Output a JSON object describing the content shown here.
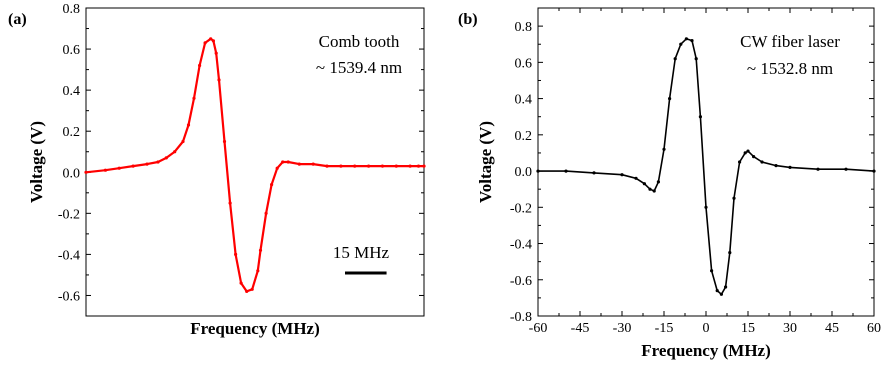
{
  "chart_data": [
    {
      "type": "line",
      "panel_label": "(a)",
      "xlabel": "Frequency (MHz)",
      "ylabel": "Voltage (V)",
      "x_ticks_labeled": false,
      "ylim": [
        -0.7,
        0.8
      ],
      "yticks": [
        -0.6,
        -0.4,
        -0.2,
        0.0,
        0.2,
        0.4,
        0.6,
        0.8
      ],
      "ytick_labels": [
        "-0.6",
        "-0.4",
        "-0.2",
        "0.0",
        "0.2",
        "0.4",
        "0.6",
        "0.8"
      ],
      "annotations": [
        "Comb tooth",
        "~ 1539.4 nm"
      ],
      "scale_bar_label": "15 MHz",
      "scale_bar_mhz": 15,
      "color": "#ff0000",
      "series": [
        {
          "x": [
            -57,
            -50,
            -45,
            -40,
            -35,
            -31,
            -28,
            -25,
            -22,
            -20,
            -18,
            -16,
            -14,
            -12,
            -11,
            -10,
            -9,
            -7,
            -5,
            -3,
            -1,
            1,
            3,
            5,
            6,
            8,
            10,
            12,
            14,
            16,
            20,
            25,
            30,
            35,
            40,
            45,
            50,
            55,
            60,
            63,
            65
          ],
          "y": [
            0.0,
            0.01,
            0.02,
            0.03,
            0.04,
            0.05,
            0.07,
            0.1,
            0.15,
            0.23,
            0.36,
            0.52,
            0.63,
            0.65,
            0.64,
            0.58,
            0.45,
            0.15,
            -0.15,
            -0.4,
            -0.54,
            -0.58,
            -0.57,
            -0.48,
            -0.38,
            -0.2,
            -0.06,
            0.02,
            0.05,
            0.05,
            0.04,
            0.04,
            0.03,
            0.03,
            0.03,
            0.03,
            0.03,
            0.03,
            0.03,
            0.03,
            0.03
          ]
        }
      ]
    },
    {
      "type": "scatter",
      "panel_label": "(b)",
      "xlabel": "Frequency (MHz)",
      "ylabel": "Voltage (V)",
      "xlim": [
        -60,
        60
      ],
      "ylim": [
        -0.8,
        0.9
      ],
      "xticks": [
        -60,
        -45,
        -30,
        -15,
        0,
        15,
        30,
        45,
        60
      ],
      "xtick_labels": [
        "-60",
        "-45",
        "-30",
        "-15",
        "0",
        "15",
        "30",
        "45",
        "60"
      ],
      "yticks": [
        -0.8,
        -0.6,
        -0.4,
        -0.2,
        0.0,
        0.2,
        0.4,
        0.6,
        0.8
      ],
      "ytick_labels": [
        "-0.8",
        "-0.6",
        "-0.4",
        "-0.2",
        "0.0",
        "0.2",
        "0.4",
        "0.6",
        "0.8"
      ],
      "annotations": [
        "CW fiber laser",
        "~ 1532.8 nm"
      ],
      "color": "#000000",
      "series": [
        {
          "x": [
            -60,
            -50,
            -40,
            -30,
            -25,
            -22,
            -20,
            -18.5,
            -17,
            -15,
            -13,
            -11,
            -9,
            -7,
            -5,
            -3.5,
            -2,
            0,
            2,
            4,
            5.5,
            7,
            8.5,
            10,
            12,
            14,
            15,
            17,
            20,
            25,
            30,
            40,
            50,
            60
          ],
          "y": [
            0.0,
            0.0,
            -0.01,
            -0.02,
            -0.04,
            -0.07,
            -0.1,
            -0.11,
            -0.06,
            0.12,
            0.4,
            0.62,
            0.7,
            0.73,
            0.72,
            0.62,
            0.3,
            -0.2,
            -0.55,
            -0.66,
            -0.68,
            -0.64,
            -0.45,
            -0.15,
            0.05,
            0.1,
            0.11,
            0.08,
            0.05,
            0.03,
            0.02,
            0.01,
            0.01,
            0.0
          ]
        }
      ]
    }
  ]
}
